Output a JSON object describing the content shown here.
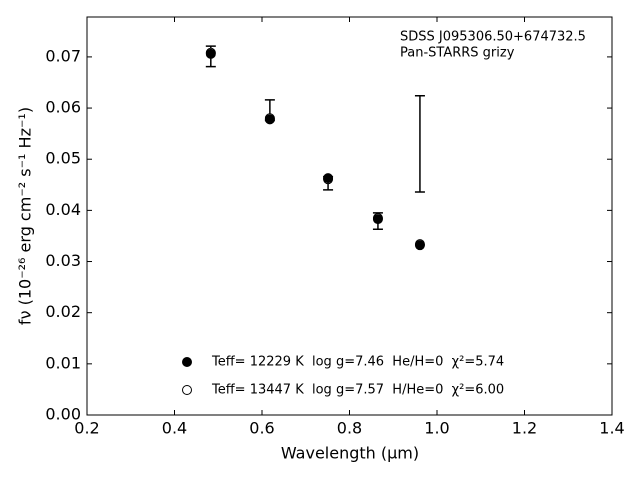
{
  "chart_data": {
    "type": "scatter",
    "title": "SDSS J095306.50+674732.5",
    "subtitle": "Pan-STARRS grizy",
    "x_label": "Wavelength (μm)",
    "y_label": "fν (10⁻²⁶ erg cm⁻² s⁻¹ Hz⁻¹)",
    "x": [
      0.483,
      0.618,
      0.751,
      0.865,
      0.961
    ],
    "series": [
      {
        "marker": "errorbar",
        "color": "#000000",
        "values": [
          0.0701,
          0.0596,
          0.0453,
          0.0379,
          0.053
        ],
        "errors": [
          0.002,
          0.002,
          0.0013,
          0.0016,
          0.0094
        ]
      },
      {
        "name": "Teff= 13447 K  log g=7.57  H/He=0  χ²=6.00",
        "marker": "open",
        "color": "#000000",
        "values": [
          0.0708,
          0.058,
          0.0461,
          0.0385,
          0.0334
        ]
      },
      {
        "name": "Teff= 12229 K  log g=7.46  He/H=0  χ²=5.74",
        "marker": "filled",
        "color": "#000000",
        "values": [
          0.0706,
          0.0578,
          0.0463,
          0.0383,
          0.0332
        ]
      }
    ],
    "xlim": [
      0.2,
      1.4
    ],
    "xticks": [
      0.2,
      0.4,
      0.6,
      0.8,
      {
        "value": 1,
        "label": "1.0"
      },
      1.2,
      1.4
    ],
    "ylim": [
      0,
      0.0778
    ],
    "yticks": [
      {
        "value": 0,
        "label": "0.00"
      },
      0.01,
      0.02,
      0.03,
      0.04,
      0.05,
      0.06,
      0.07
    ]
  }
}
